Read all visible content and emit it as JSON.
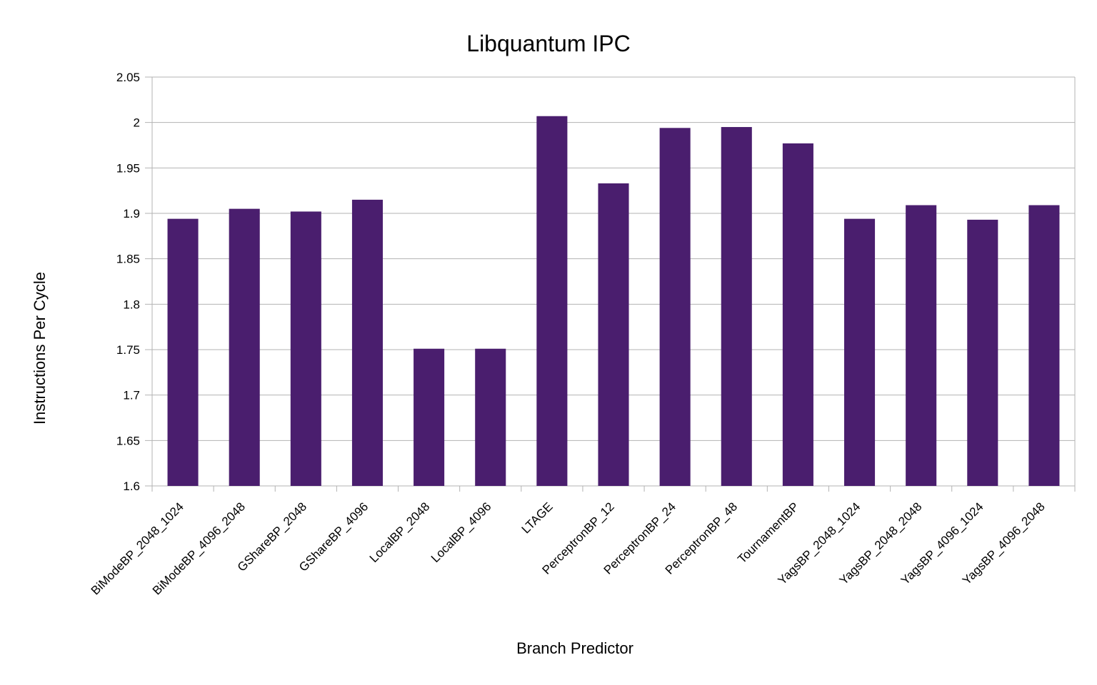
{
  "chart_data": {
    "type": "bar",
    "title": "Libquantum IPC",
    "xlabel": "Branch Predictor",
    "ylabel": "Instructions Per Cycle",
    "ylim": [
      1.6,
      2.05
    ],
    "yticks": [
      "1.6",
      "1.65",
      "1.7",
      "1.75",
      "1.8",
      "1.85",
      "1.9",
      "1.95",
      "2",
      "2.05"
    ],
    "grid": true,
    "legend": "none",
    "bar_color": "#4a1e6e",
    "categories": [
      "BiModeBP_2048_1024",
      "BiModeBP_4096_2048",
      "GShareBP_2048",
      "GShareBP_4096",
      "LocalBP_2048",
      "LocalBP_4096",
      "LTAGE",
      "PerceptronBP_12",
      "PerceptronBP_24",
      "PerceptronBP_48",
      "TournamentBP",
      "YagsBP_2048_1024",
      "YagsBP_2048_2048",
      "YagsBP_4096_1024",
      "YagsBP_4096_2048"
    ],
    "values": [
      1.894,
      1.905,
      1.902,
      1.915,
      1.751,
      1.751,
      2.007,
      1.933,
      1.994,
      1.995,
      1.977,
      1.894,
      1.909,
      1.893,
      1.909
    ]
  }
}
